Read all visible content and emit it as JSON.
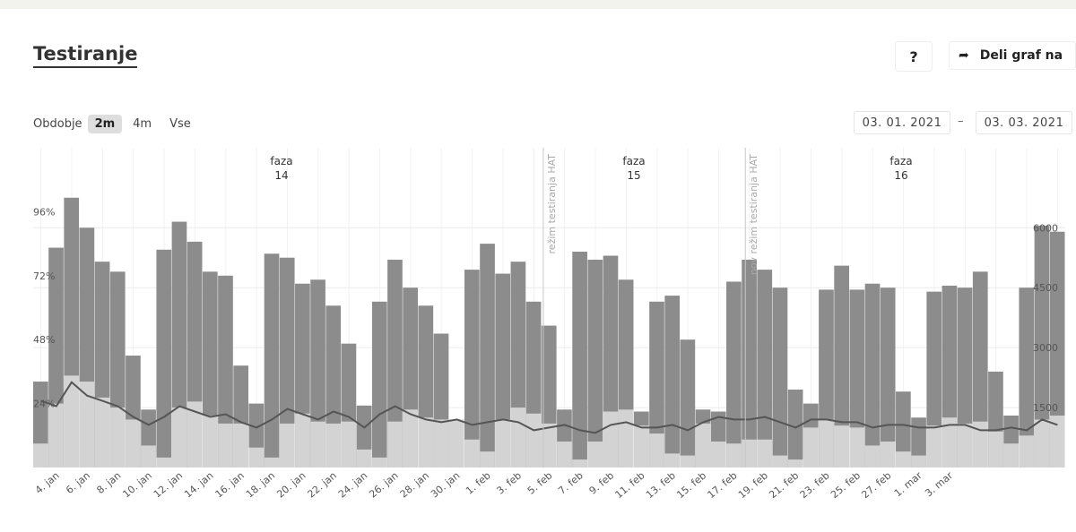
{
  "header": {
    "title": "Testiranje",
    "help_label": "?",
    "share_label": "Deli graf na",
    "share_icon": "share-arrow-icon"
  },
  "period": {
    "label": "Obdobje",
    "options": [
      "2m",
      "4m",
      "Vse"
    ],
    "selected": "2m"
  },
  "date_range": {
    "from": "03. 01. 2021",
    "separator": "–",
    "to": "03. 03. 2021"
  },
  "chart_data": {
    "type": "bar",
    "grid": true,
    "x_tick_labels": [
      "4. jan",
      "6. jan",
      "8. jan",
      "10. jan",
      "12. jan",
      "14. jan",
      "16. jan",
      "18. jan",
      "20. jan",
      "22. jan",
      "24. jan",
      "26. jan",
      "28. jan",
      "30. jan",
      "1. feb",
      "3. feb",
      "5. feb",
      "7. feb",
      "9. feb",
      "11. feb",
      "13. feb",
      "15. feb",
      "17. feb",
      "19. feb",
      "21. feb",
      "23. feb",
      "25. feb",
      "27. feb",
      "1. mar",
      "3. mar"
    ],
    "y_left_ticks": [
      "24%",
      "48%",
      "72%",
      "96%"
    ],
    "y_left_values": [
      24,
      48,
      72,
      96
    ],
    "y_right_ticks": [
      "1500",
      "3000",
      "4500",
      "6000"
    ],
    "y_right_values": [
      1500,
      3000,
      4500,
      6000
    ],
    "y_right_max": 8000,
    "series": [
      {
        "values": [
          2150,
          5500,
          6750,
          6000,
          5150,
          4900,
          2800,
          1450,
          5450,
          6150,
          5650,
          4900,
          4800,
          2550,
          1600,
          5350,
          5250,
          4600,
          4700,
          4050,
          3100,
          1550,
          4150,
          5200,
          4500,
          4050,
          3350,
          1200,
          4950,
          5600,
          4850,
          5150,
          4150,
          3550,
          1450,
          5400,
          5200,
          5300,
          4700,
          1400,
          4150,
          4300,
          3200,
          1450,
          1400,
          4650,
          5200,
          4950,
          4500,
          1950,
          1600,
          4450,
          5050,
          4450,
          4600,
          4500,
          1900,
          1250,
          4400,
          4550,
          4500,
          4900,
          2400,
          1300,
          4500,
          6050,
          5900
        ]
      },
      {
        "values": [
          600,
          1600,
          2300,
          2150,
          1750,
          1500,
          1200,
          550,
          250,
          1500,
          1650,
          1300,
          1100,
          1100,
          500,
          250,
          1100,
          1350,
          1150,
          1100,
          1150,
          450,
          250,
          1150,
          1450,
          1250,
          1200,
          1200,
          700,
          400,
          1200,
          1500,
          1350,
          1100,
          650,
          200,
          650,
          1400,
          1450,
          1050,
          850,
          350,
          300,
          1100,
          650,
          600,
          700,
          700,
          300,
          200,
          1000,
          1200,
          1050,
          1000,
          550,
          650,
          400,
          300,
          1050,
          1250,
          1100,
          1150,
          900,
          600,
          800,
          1200,
          1300
        ]
      },
      {
        "values": [
          25,
          23,
          32,
          27,
          25,
          23,
          19,
          16,
          19,
          23,
          21,
          19,
          20,
          17,
          15,
          18,
          22,
          20,
          18,
          21,
          19,
          15,
          20,
          23,
          20,
          18,
          17,
          18,
          16,
          17,
          18,
          17,
          14,
          15,
          16,
          14,
          13,
          16,
          17,
          15,
          15,
          16,
          14,
          17,
          19,
          18,
          18,
          19,
          17,
          15,
          18,
          18,
          17,
          17,
          15,
          16,
          16,
          15,
          15,
          16,
          16,
          14,
          14,
          15,
          14,
          18,
          16
        ]
      }
    ],
    "annotations": [
      {
        "name": "faza",
        "value": "14"
      },
      {
        "name": "faza",
        "value": "15"
      },
      {
        "name": "faza",
        "value": "16"
      },
      {
        "name": "režim testiranja HAT"
      },
      {
        "name": "nov režim testiranja HAT"
      }
    ]
  }
}
